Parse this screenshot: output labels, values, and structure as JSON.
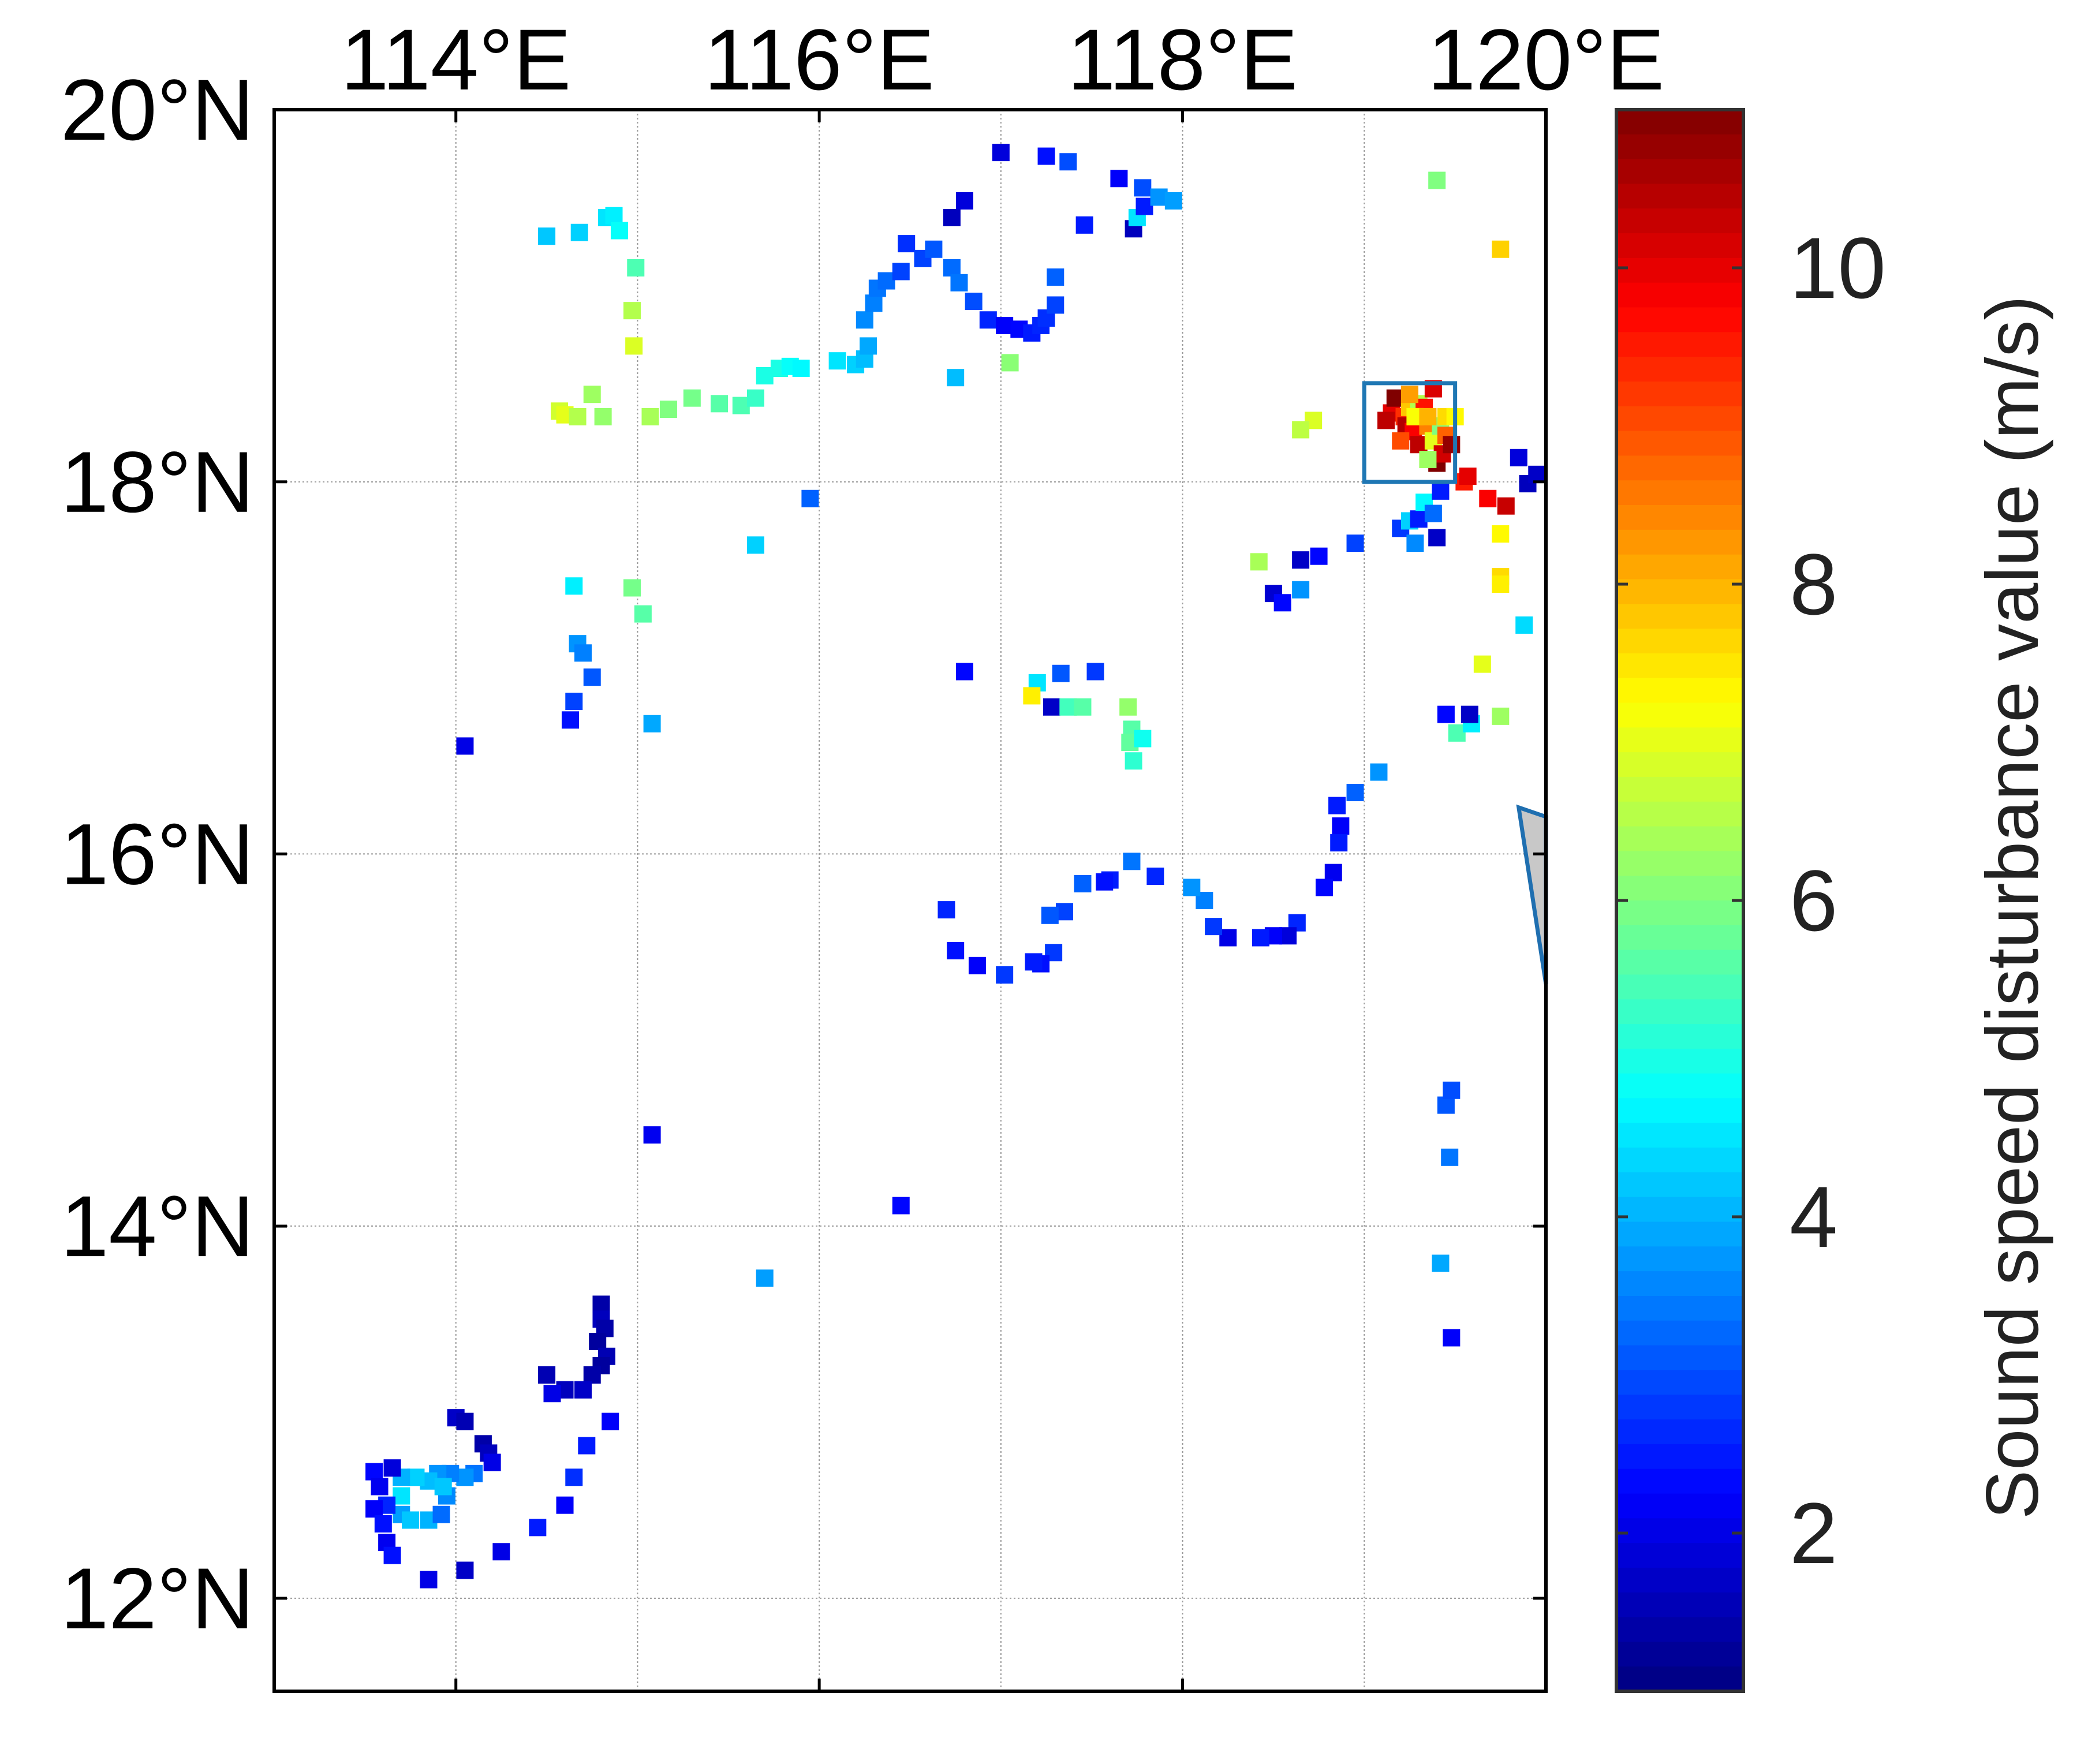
{
  "map": {
    "lon_range": [
      113.0,
      120.0
    ],
    "lat_range": [
      11.5,
      20.0
    ],
    "lon_ticks": [
      {
        "value": 114,
        "label": "114°E"
      },
      {
        "value": 116,
        "label": "116°E"
      },
      {
        "value": 118,
        "label": "118°E"
      },
      {
        "value": 120,
        "label": "120°E"
      }
    ],
    "lat_ticks": [
      {
        "value": 20,
        "label": "20°N"
      },
      {
        "value": 18,
        "label": "18°N"
      },
      {
        "value": 16,
        "label": "16°N"
      },
      {
        "value": 14,
        "label": "14°N"
      },
      {
        "value": 12,
        "label": "12°N"
      }
    ],
    "grid": true,
    "grid_lons": [
      114,
      115,
      116,
      117,
      118,
      119,
      120
    ],
    "grid_lats": [
      20,
      18,
      16,
      14,
      12
    ],
    "highlight_box": {
      "lon": [
        119.0,
        119.5
      ],
      "lat": [
        18.0,
        18.53
      ],
      "color": "#1f77b4"
    },
    "land_wedge": {
      "points": [
        [
          119.85,
          16.25
        ],
        [
          120.0,
          16.2
        ],
        [
          120.0,
          15.3
        ]
      ],
      "fill": "#c8c8c8",
      "stroke": "#1f6fb0"
    }
  },
  "colorbar": {
    "title": "Sound speed disturbance value (m/s)",
    "range": [
      1.0,
      11.0
    ],
    "ticks": [
      {
        "value": 2,
        "label": "2"
      },
      {
        "value": 4,
        "label": "4"
      },
      {
        "value": 6,
        "label": "6"
      },
      {
        "value": 8,
        "label": "8"
      },
      {
        "value": 10,
        "label": "10"
      }
    ],
    "colormap": "jet"
  },
  "chart_data": {
    "type": "scatter",
    "x_label": "",
    "y_label": "",
    "value_label": "Sound speed disturbance value (m/s)",
    "points": [
      [
        114.5,
        19.32,
        4.2
      ],
      [
        114.68,
        19.34,
        4.3
      ],
      [
        114.83,
        19.42,
        4.5
      ],
      [
        114.87,
        19.43,
        4.6
      ],
      [
        114.9,
        19.35,
        4.8
      ],
      [
        114.99,
        19.15,
        5.5
      ],
      [
        114.97,
        18.92,
        6.5
      ],
      [
        114.98,
        18.73,
        6.9
      ],
      [
        114.57,
        18.38,
        6.8
      ],
      [
        114.6,
        18.36,
        7.0
      ],
      [
        114.67,
        18.35,
        6.5
      ],
      [
        114.75,
        18.47,
        6.3
      ],
      [
        114.81,
        18.35,
        6.2
      ],
      [
        115.07,
        18.35,
        6.4
      ],
      [
        115.17,
        18.39,
        6.0
      ],
      [
        115.3,
        18.45,
        5.9
      ],
      [
        115.45,
        18.42,
        5.6
      ],
      [
        115.57,
        18.41,
        5.5
      ],
      [
        115.65,
        18.45,
        5.3
      ],
      [
        115.7,
        18.57,
        5.0
      ],
      [
        115.78,
        18.61,
        5.0
      ],
      [
        115.84,
        18.62,
        4.8
      ],
      [
        115.9,
        18.61,
        4.7
      ],
      [
        116.1,
        18.65,
        4.5
      ],
      [
        116.2,
        18.63,
        4.3
      ],
      [
        116.25,
        18.66,
        4.1
      ],
      [
        116.27,
        18.73,
        3.9
      ],
      [
        116.25,
        18.87,
        3.6
      ],
      [
        116.3,
        18.96,
        3.5
      ],
      [
        116.32,
        19.04,
        3.4
      ],
      [
        116.37,
        19.08,
        3.3
      ],
      [
        116.45,
        19.13,
        2.9
      ],
      [
        116.48,
        19.28,
        2.7
      ],
      [
        116.57,
        19.2,
        2.9
      ],
      [
        116.63,
        19.25,
        3.1
      ],
      [
        116.73,
        19.15,
        3.3
      ],
      [
        116.77,
        19.07,
        3.4
      ],
      [
        116.85,
        18.97,
        3.0
      ],
      [
        116.93,
        18.87,
        2.6
      ],
      [
        117.02,
        18.84,
        2.2
      ],
      [
        117.1,
        18.82,
        2.3
      ],
      [
        117.17,
        18.8,
        2.5
      ],
      [
        117.22,
        18.84,
        2.6
      ],
      [
        117.25,
        18.88,
        2.7
      ],
      [
        117.3,
        18.95,
        2.9
      ],
      [
        117.3,
        19.1,
        3.2
      ],
      [
        116.73,
        19.42,
        1.6
      ],
      [
        116.8,
        19.51,
        1.9
      ],
      [
        117.0,
        19.77,
        1.9
      ],
      [
        117.25,
        19.75,
        2.4
      ],
      [
        117.37,
        19.72,
        3.0
      ],
      [
        117.46,
        19.38,
        2.5
      ],
      [
        117.65,
        19.63,
        2.2
      ],
      [
        117.73,
        19.36,
        1.6
      ],
      [
        117.75,
        19.42,
        4.5
      ],
      [
        117.78,
        19.58,
        3.0
      ],
      [
        117.79,
        19.48,
        2.5
      ],
      [
        117.87,
        19.53,
        3.7
      ],
      [
        117.95,
        19.51,
        3.8
      ],
      [
        117.05,
        18.64,
        6.1
      ],
      [
        116.75,
        18.56,
        4.1
      ],
      [
        115.95,
        17.91,
        3.2
      ],
      [
        115.65,
        17.66,
        4.3
      ],
      [
        114.65,
        17.44,
        4.6
      ],
      [
        114.97,
        17.43,
        5.9
      ],
      [
        115.03,
        17.29,
        5.6
      ],
      [
        114.67,
        17.13,
        3.7
      ],
      [
        114.7,
        17.08,
        3.5
      ],
      [
        114.75,
        16.95,
        3.1
      ],
      [
        114.65,
        16.82,
        2.9
      ],
      [
        114.63,
        16.72,
        2.4
      ],
      [
        115.08,
        16.7,
        3.9
      ],
      [
        114.05,
        16.58,
        2.0
      ],
      [
        116.8,
        16.98,
        2.3
      ],
      [
        117.2,
        16.92,
        4.5
      ],
      [
        117.33,
        16.97,
        3.1
      ],
      [
        117.28,
        16.79,
        1.7
      ],
      [
        117.17,
        16.85,
        7.4
      ],
      [
        117.37,
        16.79,
        5.4
      ],
      [
        117.45,
        16.79,
        5.6
      ],
      [
        117.52,
        16.98,
        2.8
      ],
      [
        117.7,
        16.79,
        6.2
      ],
      [
        117.72,
        16.67,
        5.6
      ],
      [
        117.71,
        16.6,
        5.7
      ],
      [
        117.73,
        16.5,
        5.2
      ],
      [
        117.78,
        16.62,
        4.9
      ],
      [
        118.42,
        17.57,
        6.4
      ],
      [
        118.5,
        17.4,
        1.8
      ],
      [
        118.55,
        17.35,
        2.3
      ],
      [
        118.65,
        17.58,
        1.7
      ],
      [
        118.65,
        17.42,
        3.7
      ],
      [
        118.75,
        17.6,
        2.3
      ],
      [
        118.95,
        17.67,
        2.9
      ],
      [
        119.2,
        17.75,
        2.8
      ],
      [
        119.25,
        17.79,
        4.3
      ],
      [
        119.3,
        17.8,
        2.5
      ],
      [
        119.33,
        17.89,
        4.7
      ],
      [
        119.28,
        17.67,
        3.6
      ],
      [
        119.38,
        17.83,
        3.3
      ],
      [
        119.4,
        17.7,
        1.7
      ],
      [
        119.42,
        17.95,
        2.5
      ],
      [
        119.75,
        17.72,
        7.3
      ],
      [
        119.75,
        17.49,
        7.6
      ],
      [
        119.75,
        17.45,
        7.4
      ],
      [
        119.88,
        17.23,
        4.4
      ],
      [
        119.65,
        17.02,
        7.0
      ],
      [
        119.75,
        16.74,
        6.3
      ],
      [
        119.51,
        16.65,
        5.5
      ],
      [
        119.59,
        16.7,
        4.6
      ],
      [
        119.58,
        16.75,
        1.7
      ],
      [
        119.45,
        16.75,
        2.3
      ],
      [
        119.08,
        16.44,
        3.7
      ],
      [
        118.95,
        16.33,
        3.2
      ],
      [
        118.85,
        16.26,
        2.5
      ],
      [
        118.87,
        16.15,
        2.2
      ],
      [
        118.86,
        16.06,
        2.5
      ],
      [
        118.83,
        15.9,
        2.1
      ],
      [
        118.78,
        15.82,
        2.3
      ],
      [
        118.63,
        15.63,
        2.6
      ],
      [
        118.58,
        15.56,
        1.9
      ],
      [
        118.5,
        15.56,
        2.2
      ],
      [
        118.43,
        15.55,
        2.5
      ],
      [
        118.25,
        15.55,
        2.0
      ],
      [
        118.17,
        15.61,
        2.8
      ],
      [
        118.12,
        15.75,
        3.5
      ],
      [
        118.05,
        15.82,
        3.7
      ],
      [
        117.85,
        15.88,
        2.6
      ],
      [
        117.72,
        15.96,
        3.4
      ],
      [
        117.6,
        15.86,
        2.5
      ],
      [
        117.57,
        15.85,
        2.4
      ],
      [
        117.45,
        15.84,
        3.2
      ],
      [
        117.35,
        15.69,
        2.9
      ],
      [
        117.27,
        15.67,
        3.1
      ],
      [
        117.29,
        15.47,
        2.8
      ],
      [
        117.22,
        15.41,
        2.4
      ],
      [
        117.18,
        15.42,
        2.5
      ],
      [
        117.02,
        15.35,
        2.8
      ],
      [
        116.87,
        15.4,
        2.2
      ],
      [
        116.75,
        15.48,
        2.4
      ],
      [
        116.7,
        15.7,
        2.6
      ],
      [
        115.08,
        14.49,
        2.1
      ],
      [
        116.45,
        14.11,
        2.3
      ],
      [
        115.7,
        13.72,
        3.8
      ],
      [
        119.45,
        14.65,
        3.1
      ],
      [
        119.48,
        14.73,
        3.0
      ],
      [
        119.47,
        14.37,
        3.4
      ],
      [
        119.42,
        13.8,
        3.9
      ],
      [
        119.48,
        13.4,
        2.2
      ],
      [
        114.8,
        13.58,
        1.4
      ],
      [
        114.8,
        13.5,
        1.6
      ],
      [
        114.82,
        13.45,
        1.4
      ],
      [
        114.78,
        13.38,
        1.3
      ],
      [
        114.83,
        13.3,
        1.5
      ],
      [
        114.8,
        13.25,
        1.3
      ],
      [
        114.75,
        13.2,
        1.4
      ],
      [
        114.5,
        13.2,
        1.5
      ],
      [
        114.6,
        13.12,
        1.6
      ],
      [
        114.7,
        13.12,
        1.7
      ],
      [
        114.53,
        13.1,
        2.0
      ],
      [
        114.0,
        12.97,
        1.7
      ],
      [
        114.05,
        12.95,
        1.5
      ],
      [
        114.15,
        12.83,
        1.4
      ],
      [
        114.18,
        12.78,
        1.6
      ],
      [
        114.2,
        12.73,
        2.0
      ],
      [
        114.1,
        12.67,
        3.4
      ],
      [
        114.05,
        12.65,
        3.7
      ],
      [
        113.97,
        12.67,
        3.5
      ],
      [
        113.9,
        12.67,
        3.7
      ],
      [
        113.85,
        12.63,
        4.1
      ],
      [
        113.78,
        12.65,
        4.3
      ],
      [
        113.7,
        12.65,
        4.0
      ],
      [
        113.7,
        12.55,
        4.5
      ],
      [
        113.7,
        12.45,
        3.8
      ],
      [
        113.75,
        12.42,
        4.2
      ],
      [
        113.85,
        12.42,
        4.0
      ],
      [
        113.92,
        12.45,
        3.3
      ],
      [
        113.95,
        12.55,
        3.6
      ],
      [
        113.93,
        12.6,
        4.2
      ],
      [
        113.65,
        12.7,
        1.9
      ],
      [
        113.55,
        12.68,
        2.3
      ],
      [
        113.58,
        12.6,
        2.1
      ],
      [
        113.62,
        12.5,
        2.6
      ],
      [
        113.55,
        12.48,
        2.2
      ],
      [
        113.6,
        12.4,
        2.4
      ],
      [
        113.62,
        12.3,
        2.1
      ],
      [
        113.65,
        12.23,
        2.4
      ],
      [
        113.85,
        12.1,
        2.0
      ],
      [
        114.05,
        12.15,
        1.7
      ],
      [
        114.25,
        12.25,
        2.0
      ],
      [
        114.45,
        12.38,
        2.5
      ],
      [
        114.6,
        12.5,
        2.2
      ],
      [
        114.65,
        12.65,
        2.7
      ],
      [
        114.72,
        12.82,
        2.5
      ],
      [
        114.85,
        12.95,
        2.2
      ],
      [
        119.85,
        18.13,
        1.9
      ],
      [
        119.9,
        17.99,
        1.6
      ],
      [
        119.95,
        18.04,
        1.7
      ],
      [
        119.68,
        17.91,
        9.8
      ],
      [
        119.78,
        17.87,
        10.3
      ],
      [
        119.55,
        18.0,
        9.5
      ],
      [
        119.57,
        18.03,
        10.0
      ],
      [
        119.75,
        19.25,
        7.7
      ],
      [
        119.4,
        19.62,
        6.0
      ],
      [
        118.72,
        18.33,
        6.9
      ],
      [
        118.65,
        18.28,
        6.6
      ],
      [
        119.15,
        18.37,
        10.0
      ],
      [
        119.17,
        18.45,
        11.0
      ],
      [
        119.22,
        18.35,
        9.3
      ],
      [
        119.25,
        18.4,
        7.8
      ],
      [
        119.3,
        18.42,
        6.5
      ],
      [
        119.23,
        18.3,
        10.5
      ],
      [
        119.27,
        18.27,
        9.8
      ],
      [
        119.3,
        18.2,
        10.4
      ],
      [
        119.35,
        18.3,
        8.5
      ],
      [
        119.38,
        18.22,
        7.0
      ],
      [
        119.42,
        18.3,
        6.0
      ],
      [
        119.45,
        18.25,
        8.8
      ],
      [
        119.4,
        18.1,
        11.0
      ],
      [
        119.43,
        18.15,
        10.2
      ],
      [
        119.35,
        18.12,
        6.3
      ],
      [
        119.45,
        18.35,
        7.6
      ],
      [
        119.5,
        18.35,
        7.3
      ],
      [
        119.48,
        18.2,
        10.8
      ],
      [
        119.33,
        18.4,
        9.6
      ],
      [
        119.38,
        18.5,
        10.1
      ],
      [
        119.25,
        18.47,
        8.2
      ],
      [
        119.2,
        18.22,
        9.0
      ],
      [
        119.12,
        18.33,
        10.4
      ],
      [
        119.28,
        18.35,
        7.2
      ],
      [
        119.35,
        18.35,
        8.0
      ]
    ]
  }
}
